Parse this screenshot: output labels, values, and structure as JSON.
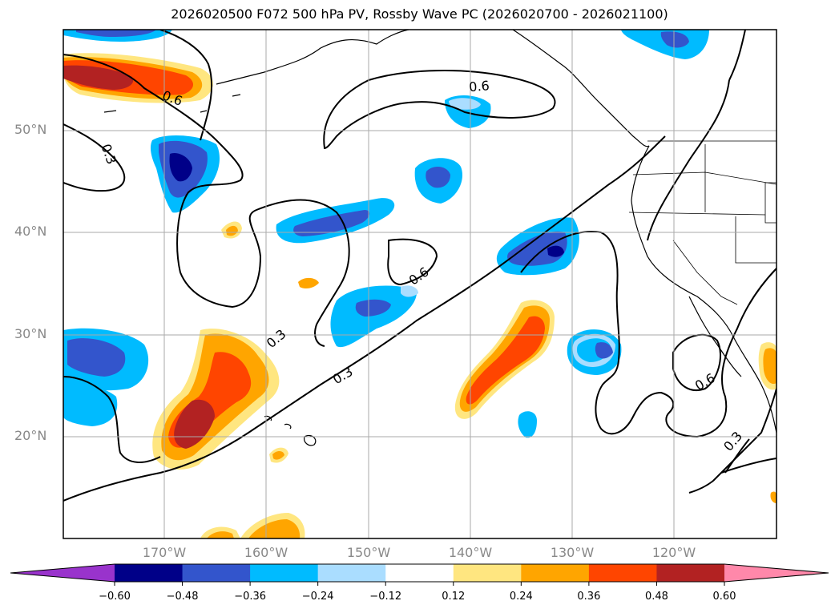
{
  "title": "2026020500 F072 500 hPa PV, Rossby Wave PC (2026020700 - 2026021100)",
  "latitude_labels": [
    "50°N",
    "40°N",
    "30°N",
    "20°N"
  ],
  "longitude_labels": [
    "170°W",
    "160°W",
    "150°W",
    "140°W",
    "130°W",
    "120°W"
  ],
  "contour_labels": [
    "0.6",
    "0.3",
    "0.3",
    "0.6",
    "0.6",
    "0.3",
    "0.6",
    "0.3"
  ],
  "colorbar": {
    "ticks": [
      "−0.60",
      "−0.48",
      "−0.36",
      "−0.24",
      "−0.12",
      "0.12",
      "0.24",
      "0.36",
      "0.48",
      "0.60"
    ],
    "colors": [
      "#9933cc",
      "#000088",
      "#3355cc",
      "#00bbff",
      "#aaddff",
      "#ffffff",
      "#ffe680",
      "#ffa500",
      "#ff4500",
      "#b22222",
      "#ff88aa"
    ]
  },
  "colors": {
    "neg_darkest": "#000088",
    "neg_dark": "#3355cc",
    "neg_mid": "#00bbff",
    "neg_light": "#aaddff",
    "pos_light": "#ffe680",
    "pos_mid": "#ffa500",
    "pos_dark": "#ff4500",
    "pos_darkest": "#b22222",
    "grid": "#aaaaaa"
  }
}
